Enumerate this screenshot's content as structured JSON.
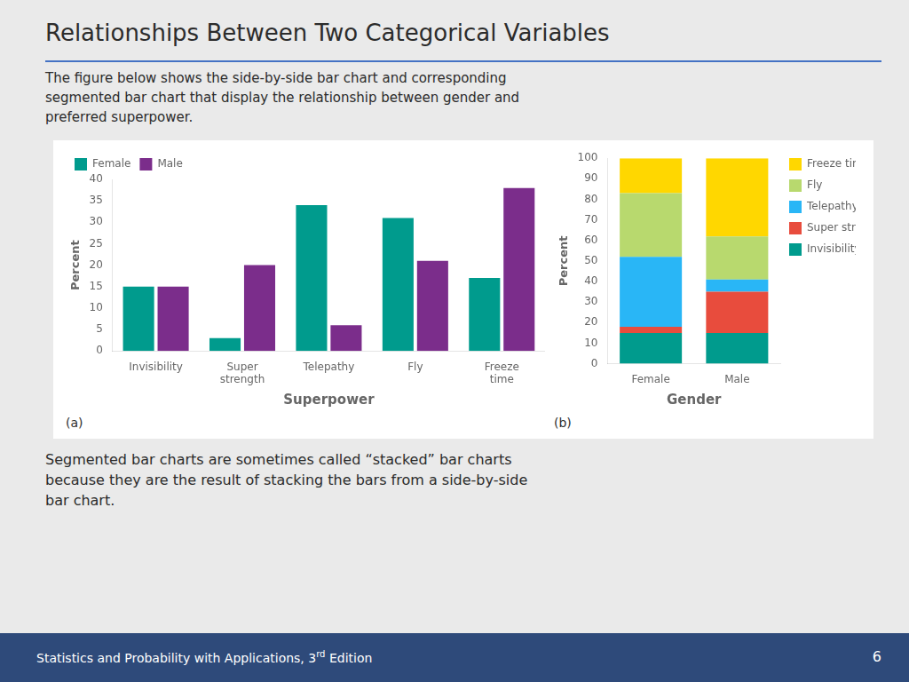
{
  "title": "Relationships Between Two Categorical Variables",
  "subtitle": "The figure below shows the side-by-side bar chart and corresponding\nsegmented bar chart that display the relationship between gender and\npreferred superpower.",
  "footer_text": "Segmented bar charts are sometimes called “stacked” bar charts\nbecause they are the result of stacking the bars from a side-by-side\nbar chart.",
  "bottom_text": [
    "Statistics and Probability with Applications, 3",
    "rd",
    " Edition"
  ],
  "page_number": "6",
  "chart_data": [
    {
      "type": "bar",
      "panel_label": "(a)",
      "xlabel": "Superpower",
      "ylabel": "Percent",
      "categories": [
        "Invisibility",
        "Super\nstrength",
        "Telepathy",
        "Fly",
        "Freeze\ntime"
      ],
      "series": [
        {
          "name": "Female",
          "color": "#009B8D",
          "values": [
            15,
            3,
            34,
            31,
            17
          ]
        },
        {
          "name": "Male",
          "color": "#7B2D8B",
          "values": [
            15,
            20,
            6,
            21,
            38
          ]
        }
      ],
      "ylim": [
        0,
        40
      ],
      "yticks": [
        0,
        5,
        10,
        15,
        20,
        25,
        30,
        35,
        40
      ],
      "grid": false,
      "legend": "upper left"
    },
    {
      "type": "bar",
      "panel_label": "(b)",
      "xlabel": "Gender",
      "ylabel": "Percent",
      "categories": [
        "Female",
        "Male"
      ],
      "stacked": true,
      "series": [
        {
          "name": "Invisibility",
          "color": "#009B8D",
          "values": [
            15,
            15
          ]
        },
        {
          "name": "Super strength",
          "color": "#E84C3D",
          "values": [
            3,
            20
          ]
        },
        {
          "name": "Telepathy",
          "color": "#29B6F6",
          "values": [
            34,
            6
          ]
        },
        {
          "name": "Fly",
          "color": "#B8D96E",
          "values": [
            31,
            21
          ]
        },
        {
          "name": "Freeze time",
          "color": "#FFD700",
          "values": [
            17,
            38
          ]
        }
      ],
      "ylim": [
        0,
        100
      ],
      "yticks": [
        0,
        10,
        20,
        30,
        40,
        50,
        60,
        70,
        80,
        90,
        100
      ],
      "grid": false,
      "legend": "right"
    }
  ]
}
